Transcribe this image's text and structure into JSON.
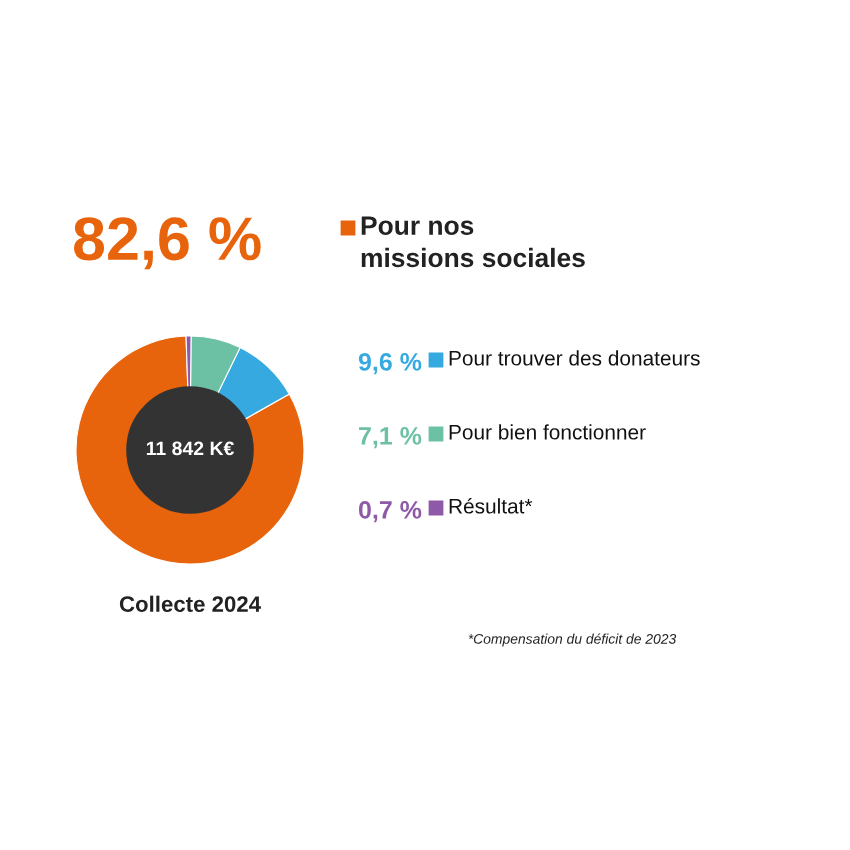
{
  "chart_data": {
    "type": "donut",
    "categories": [
      "Pour nos\nmissions sociales",
      "Pour trouver des donateurs",
      "Pour bien fonctionner",
      "Résultat*"
    ],
    "values": [
      82.6,
      9.6,
      7.1,
      0.7
    ],
    "value_labels": [
      "82,6 %",
      "9,6 %",
      "7,1 %",
      "0,7 %"
    ],
    "legend": "right",
    "colors": [
      "#e8640c",
      "#36a9e0",
      "#6cc0a3",
      "#8e5aa8"
    ],
    "annotations": [
      "11 842 K€",
      "Collecte 2024",
      "*Compensation du déficit de 2023"
    ]
  }
}
